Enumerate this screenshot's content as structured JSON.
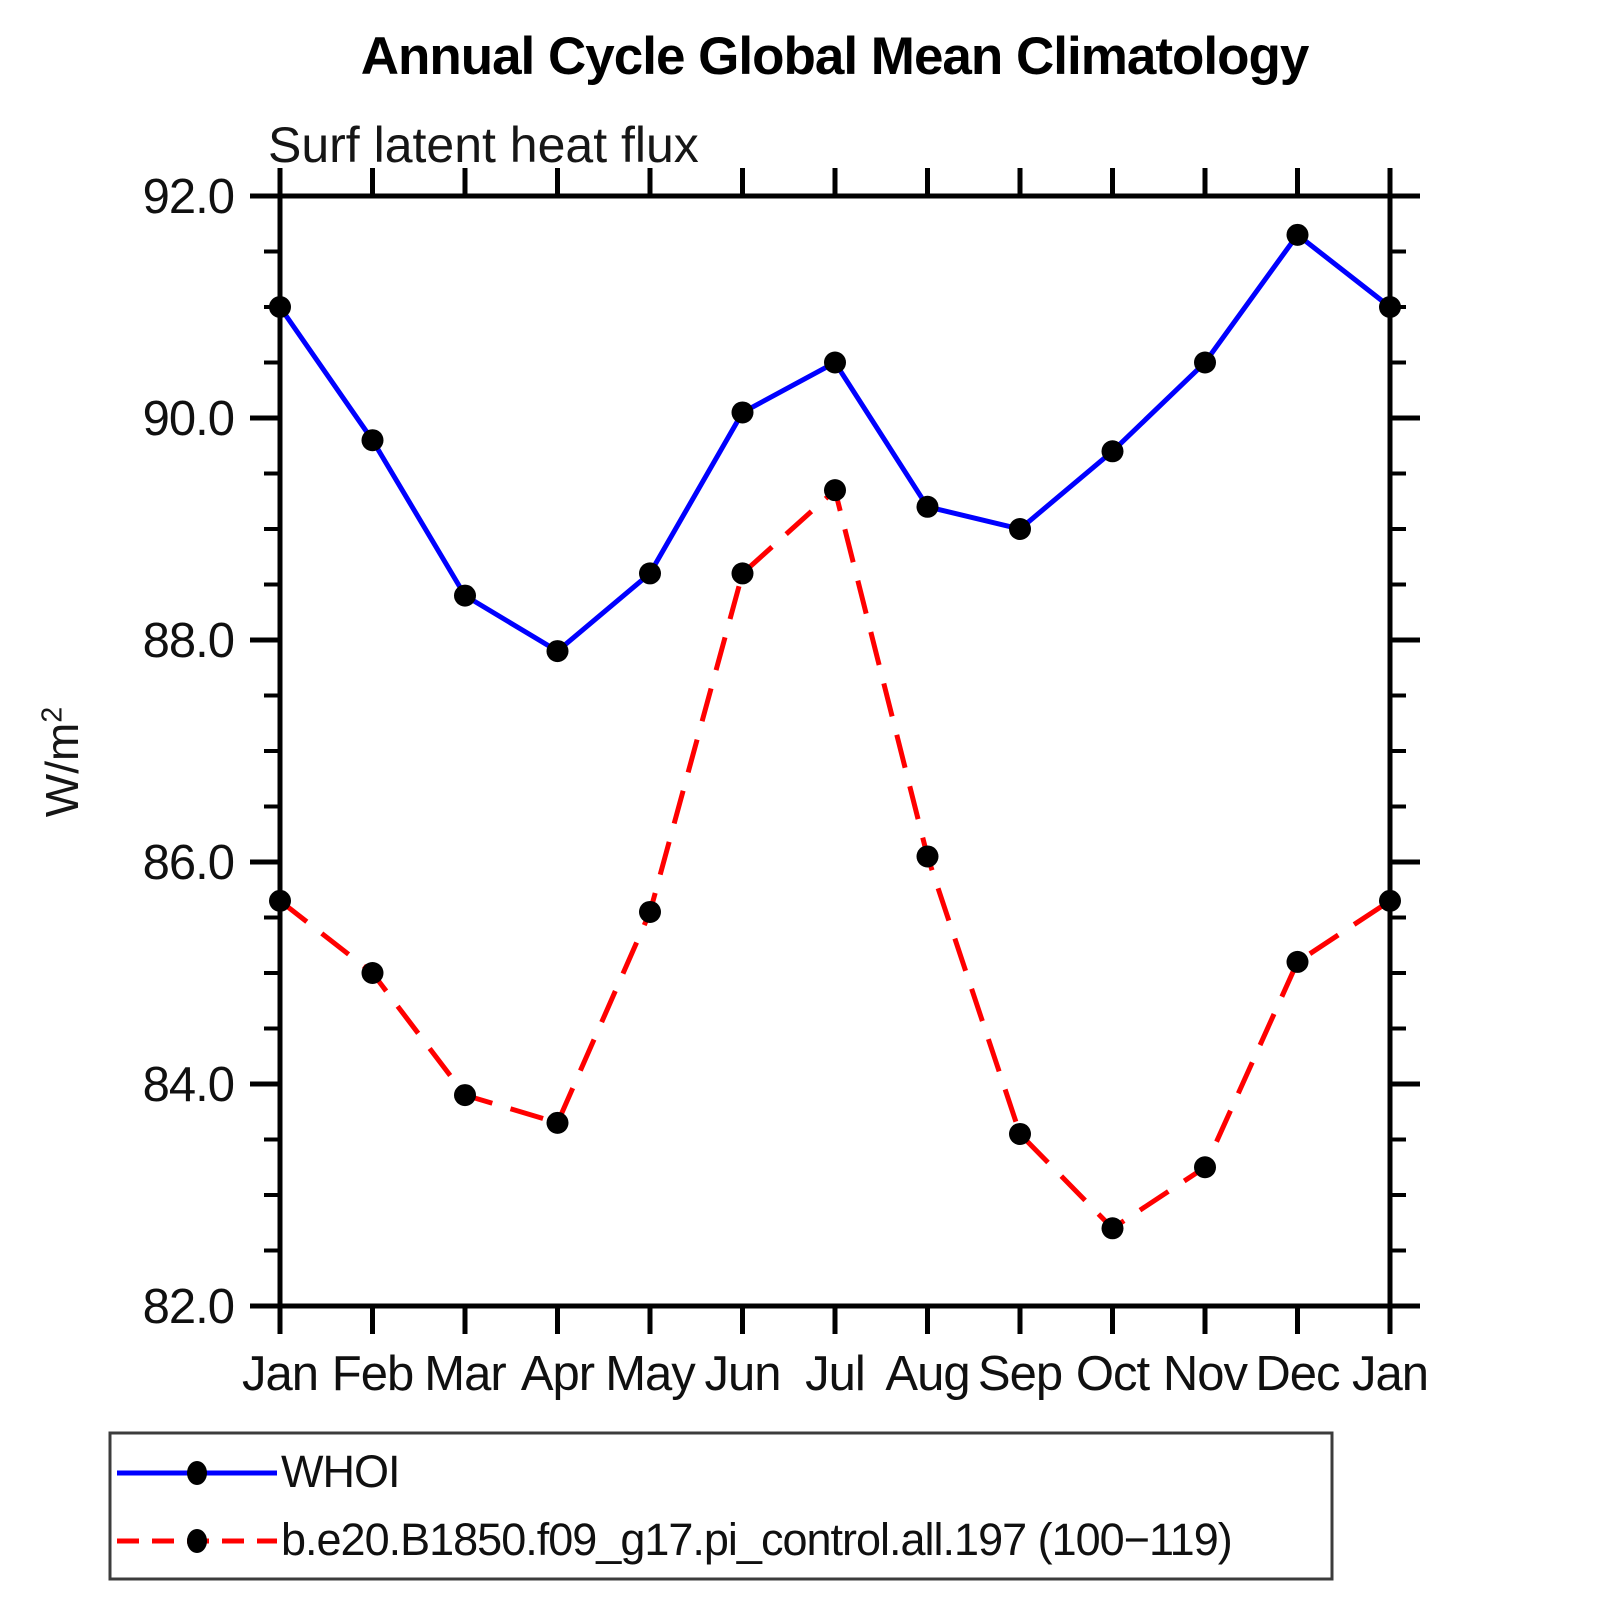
{
  "title": "Annual Cycle Global Mean Climatology",
  "subtitle": "Surf latent heat flux",
  "y_axis": {
    "label_base": "W/m",
    "label_sup": "2",
    "tick_labels": [
      "82.0",
      "84.0",
      "86.0",
      "88.0",
      "90.0",
      "92.0"
    ]
  },
  "x_axis": {
    "tick_labels": [
      "Jan",
      "Feb",
      "Mar",
      "Apr",
      "May",
      "Jun",
      "Jul",
      "Aug",
      "Sep",
      "Oct",
      "Nov",
      "Dec",
      "Jan"
    ]
  },
  "legend": [
    {
      "label": "WHOI",
      "color": "#0000ff",
      "dash": "solid"
    },
    {
      "label": "b.e20.B1850.f09_g17.pi_control.all.197 (100−119)",
      "color": "#ff0000",
      "dash": "dashed"
    }
  ],
  "colors": {
    "whoi_line": "#0000ff",
    "model_line": "#ff0000",
    "marker": "#000000",
    "axis": "#000000",
    "legend_border": "#3c3c3c"
  },
  "chart_data": {
    "type": "line",
    "title": "Annual Cycle Global Mean Climatology",
    "subtitle": "Surf latent heat flux",
    "ylabel": "W/m2",
    "categories": [
      "Jan",
      "Feb",
      "Mar",
      "Apr",
      "May",
      "Jun",
      "Jul",
      "Aug",
      "Sep",
      "Oct",
      "Nov",
      "Dec",
      "Jan"
    ],
    "series": [
      {
        "name": "WHOI",
        "color": "#0000ff",
        "line_style": "solid",
        "marker_color": "#000000",
        "values": [
          91.0,
          89.8,
          88.4,
          87.9,
          88.6,
          90.05,
          90.5,
          89.2,
          89.0,
          89.7,
          90.5,
          91.65,
          91.0
        ]
      },
      {
        "name": "b.e20.B1850.f09_g17.pi_control.all.197 (100−119)",
        "color": "#ff0000",
        "line_style": "dashed",
        "marker_color": "#000000",
        "values": [
          85.65,
          85.0,
          83.9,
          83.65,
          85.55,
          88.6,
          89.35,
          86.05,
          83.55,
          82.7,
          83.25,
          85.1,
          85.65
        ]
      }
    ],
    "ylim": [
      82.0,
      92.0
    ],
    "ytick_major": 2.0,
    "ytick_minor": 0.5,
    "grid": false,
    "legend_position": "bottom"
  }
}
